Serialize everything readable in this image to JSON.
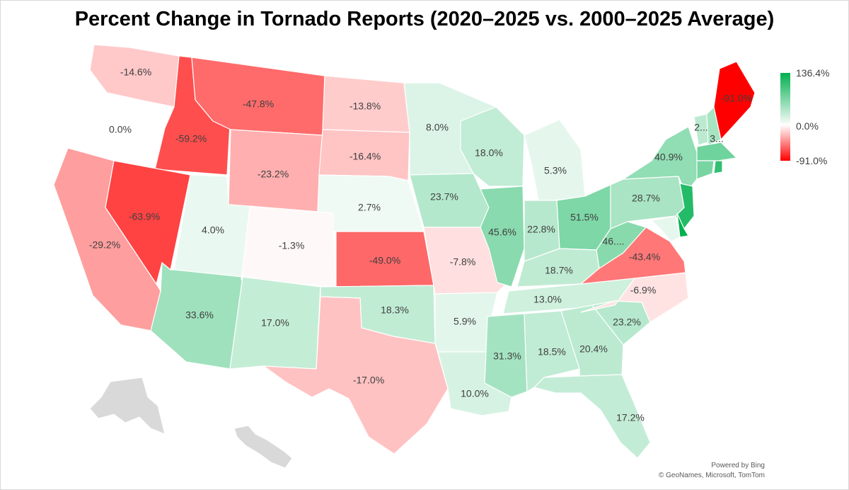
{
  "title": "Percent Change in Tornado Reports (2020–2025 vs. 2000–2025 Average)",
  "legend": {
    "max_label": "136.4%",
    "mid_label": "0.0%",
    "min_label": "-91.0%",
    "colors": {
      "high": "#00b050",
      "mid": "#ffffff",
      "low": "#ff0000"
    }
  },
  "attribution": {
    "line1": "Powered by Bing",
    "line2": "© GeoNames, Microsoft, TomTom"
  },
  "states": [
    {
      "id": "WA",
      "value": -14.6,
      "label": "-14.6%"
    },
    {
      "id": "OR",
      "value": 0.0,
      "label": "0.0%"
    },
    {
      "id": "CA",
      "value": -29.2,
      "label": "-29.2%"
    },
    {
      "id": "ID",
      "value": -59.2,
      "label": "-59.2%"
    },
    {
      "id": "NV",
      "value": -63.9,
      "label": "-63.9%"
    },
    {
      "id": "MT",
      "value": -47.8,
      "label": "-47.8%"
    },
    {
      "id": "WY",
      "value": -23.2,
      "label": "-23.2%"
    },
    {
      "id": "UT",
      "value": 4.0,
      "label": "4.0%"
    },
    {
      "id": "AZ",
      "value": 33.6,
      "label": "33.6%"
    },
    {
      "id": "CO",
      "value": -1.3,
      "label": "-1.3%"
    },
    {
      "id": "NM",
      "value": 17.0,
      "label": "17.0%"
    },
    {
      "id": "ND",
      "value": -13.8,
      "label": "-13.8%"
    },
    {
      "id": "SD",
      "value": -16.4,
      "label": "-16.4%"
    },
    {
      "id": "NE",
      "value": 2.7,
      "label": "2.7%"
    },
    {
      "id": "KS",
      "value": -49.0,
      "label": "-49.0%"
    },
    {
      "id": "OK",
      "value": 18.3,
      "label": "18.3%"
    },
    {
      "id": "TX",
      "value": -17.0,
      "label": "-17.0%"
    },
    {
      "id": "MN",
      "value": 8.0,
      "label": "8.0%"
    },
    {
      "id": "IA",
      "value": 23.7,
      "label": "23.7%"
    },
    {
      "id": "MO",
      "value": -7.8,
      "label": "-7.8%"
    },
    {
      "id": "AR",
      "value": 5.9,
      "label": "5.9%"
    },
    {
      "id": "LA",
      "value": 10.0,
      "label": "10.0%"
    },
    {
      "id": "WI",
      "value": 18.0,
      "label": "18.0%"
    },
    {
      "id": "IL",
      "value": 45.6,
      "label": "45.6%"
    },
    {
      "id": "MI",
      "value": 5.3,
      "label": "5.3%"
    },
    {
      "id": "IN",
      "value": 22.8,
      "label": "22.8%"
    },
    {
      "id": "OH",
      "value": 51.5,
      "label": "51.5%"
    },
    {
      "id": "KY",
      "value": 18.7,
      "label": "18.7%"
    },
    {
      "id": "TN",
      "value": 13.0,
      "label": "13.0%"
    },
    {
      "id": "MS",
      "value": 31.3,
      "label": "31.3%"
    },
    {
      "id": "AL",
      "value": 18.5,
      "label": "18.5%"
    },
    {
      "id": "GA",
      "value": 20.4,
      "label": "20.4%"
    },
    {
      "id": "FL",
      "value": 17.2,
      "label": "17.2%"
    },
    {
      "id": "SC",
      "value": 23.2,
      "label": "23.2%"
    },
    {
      "id": "NC",
      "value": -6.9,
      "label": "-6.9%"
    },
    {
      "id": "VA",
      "value": -43.4,
      "label": "-43.4%"
    },
    {
      "id": "WV",
      "value": 46.0,
      "label": "46...."
    },
    {
      "id": "PA",
      "value": 28.7,
      "label": "28.7%"
    },
    {
      "id": "NY",
      "value": 40.9,
      "label": "40.9%"
    },
    {
      "id": "VT",
      "value": 20.0,
      "label": "2..."
    },
    {
      "id": "NH",
      "value": 30.0,
      "label": "3..."
    },
    {
      "id": "ME",
      "value": -91.0,
      "label": "-91.0%"
    },
    {
      "id": "MA",
      "value": 60.0,
      "label": ""
    },
    {
      "id": "CT",
      "value": 55.0,
      "label": ""
    },
    {
      "id": "RI",
      "value": 100.0,
      "label": ""
    },
    {
      "id": "NJ",
      "value": 110.0,
      "label": ""
    },
    {
      "id": "DE",
      "value": 136.4,
      "label": ""
    },
    {
      "id": "MD",
      "value": 5.0,
      "label": ""
    }
  ]
}
